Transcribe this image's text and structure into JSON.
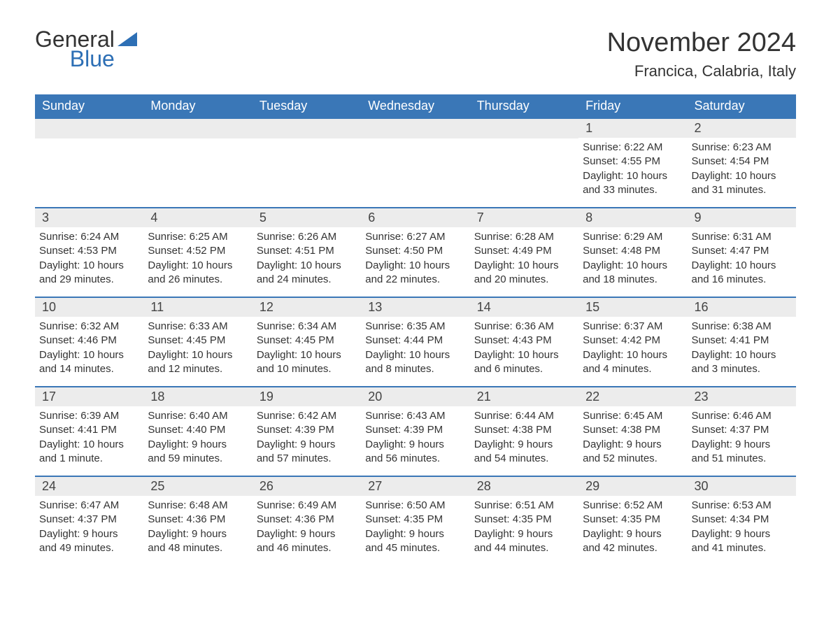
{
  "logo": {
    "text1": "General",
    "text2": "Blue"
  },
  "title": "November 2024",
  "location": "Francica, Calabria, Italy",
  "colors": {
    "header_bg": "#3a77b7",
    "header_text": "#ffffff",
    "date_bg": "#ececec",
    "row_border": "#3a77b7",
    "text": "#333333",
    "logo_blue": "#2d6fb5"
  },
  "day_names": [
    "Sunday",
    "Monday",
    "Tuesday",
    "Wednesday",
    "Thursday",
    "Friday",
    "Saturday"
  ],
  "weeks": [
    [
      null,
      null,
      null,
      null,
      null,
      {
        "d": "1",
        "sr": "Sunrise: 6:22 AM",
        "ss": "Sunset: 4:55 PM",
        "dl1": "Daylight: 10 hours",
        "dl2": "and 33 minutes."
      },
      {
        "d": "2",
        "sr": "Sunrise: 6:23 AM",
        "ss": "Sunset: 4:54 PM",
        "dl1": "Daylight: 10 hours",
        "dl2": "and 31 minutes."
      }
    ],
    [
      {
        "d": "3",
        "sr": "Sunrise: 6:24 AM",
        "ss": "Sunset: 4:53 PM",
        "dl1": "Daylight: 10 hours",
        "dl2": "and 29 minutes."
      },
      {
        "d": "4",
        "sr": "Sunrise: 6:25 AM",
        "ss": "Sunset: 4:52 PM",
        "dl1": "Daylight: 10 hours",
        "dl2": "and 26 minutes."
      },
      {
        "d": "5",
        "sr": "Sunrise: 6:26 AM",
        "ss": "Sunset: 4:51 PM",
        "dl1": "Daylight: 10 hours",
        "dl2": "and 24 minutes."
      },
      {
        "d": "6",
        "sr": "Sunrise: 6:27 AM",
        "ss": "Sunset: 4:50 PM",
        "dl1": "Daylight: 10 hours",
        "dl2": "and 22 minutes."
      },
      {
        "d": "7",
        "sr": "Sunrise: 6:28 AM",
        "ss": "Sunset: 4:49 PM",
        "dl1": "Daylight: 10 hours",
        "dl2": "and 20 minutes."
      },
      {
        "d": "8",
        "sr": "Sunrise: 6:29 AM",
        "ss": "Sunset: 4:48 PM",
        "dl1": "Daylight: 10 hours",
        "dl2": "and 18 minutes."
      },
      {
        "d": "9",
        "sr": "Sunrise: 6:31 AM",
        "ss": "Sunset: 4:47 PM",
        "dl1": "Daylight: 10 hours",
        "dl2": "and 16 minutes."
      }
    ],
    [
      {
        "d": "10",
        "sr": "Sunrise: 6:32 AM",
        "ss": "Sunset: 4:46 PM",
        "dl1": "Daylight: 10 hours",
        "dl2": "and 14 minutes."
      },
      {
        "d": "11",
        "sr": "Sunrise: 6:33 AM",
        "ss": "Sunset: 4:45 PM",
        "dl1": "Daylight: 10 hours",
        "dl2": "and 12 minutes."
      },
      {
        "d": "12",
        "sr": "Sunrise: 6:34 AM",
        "ss": "Sunset: 4:45 PM",
        "dl1": "Daylight: 10 hours",
        "dl2": "and 10 minutes."
      },
      {
        "d": "13",
        "sr": "Sunrise: 6:35 AM",
        "ss": "Sunset: 4:44 PM",
        "dl1": "Daylight: 10 hours",
        "dl2": "and 8 minutes."
      },
      {
        "d": "14",
        "sr": "Sunrise: 6:36 AM",
        "ss": "Sunset: 4:43 PM",
        "dl1": "Daylight: 10 hours",
        "dl2": "and 6 minutes."
      },
      {
        "d": "15",
        "sr": "Sunrise: 6:37 AM",
        "ss": "Sunset: 4:42 PM",
        "dl1": "Daylight: 10 hours",
        "dl2": "and 4 minutes."
      },
      {
        "d": "16",
        "sr": "Sunrise: 6:38 AM",
        "ss": "Sunset: 4:41 PM",
        "dl1": "Daylight: 10 hours",
        "dl2": "and 3 minutes."
      }
    ],
    [
      {
        "d": "17",
        "sr": "Sunrise: 6:39 AM",
        "ss": "Sunset: 4:41 PM",
        "dl1": "Daylight: 10 hours",
        "dl2": "and 1 minute."
      },
      {
        "d": "18",
        "sr": "Sunrise: 6:40 AM",
        "ss": "Sunset: 4:40 PM",
        "dl1": "Daylight: 9 hours",
        "dl2": "and 59 minutes."
      },
      {
        "d": "19",
        "sr": "Sunrise: 6:42 AM",
        "ss": "Sunset: 4:39 PM",
        "dl1": "Daylight: 9 hours",
        "dl2": "and 57 minutes."
      },
      {
        "d": "20",
        "sr": "Sunrise: 6:43 AM",
        "ss": "Sunset: 4:39 PM",
        "dl1": "Daylight: 9 hours",
        "dl2": "and 56 minutes."
      },
      {
        "d": "21",
        "sr": "Sunrise: 6:44 AM",
        "ss": "Sunset: 4:38 PM",
        "dl1": "Daylight: 9 hours",
        "dl2": "and 54 minutes."
      },
      {
        "d": "22",
        "sr": "Sunrise: 6:45 AM",
        "ss": "Sunset: 4:38 PM",
        "dl1": "Daylight: 9 hours",
        "dl2": "and 52 minutes."
      },
      {
        "d": "23",
        "sr": "Sunrise: 6:46 AM",
        "ss": "Sunset: 4:37 PM",
        "dl1": "Daylight: 9 hours",
        "dl2": "and 51 minutes."
      }
    ],
    [
      {
        "d": "24",
        "sr": "Sunrise: 6:47 AM",
        "ss": "Sunset: 4:37 PM",
        "dl1": "Daylight: 9 hours",
        "dl2": "and 49 minutes."
      },
      {
        "d": "25",
        "sr": "Sunrise: 6:48 AM",
        "ss": "Sunset: 4:36 PM",
        "dl1": "Daylight: 9 hours",
        "dl2": "and 48 minutes."
      },
      {
        "d": "26",
        "sr": "Sunrise: 6:49 AM",
        "ss": "Sunset: 4:36 PM",
        "dl1": "Daylight: 9 hours",
        "dl2": "and 46 minutes."
      },
      {
        "d": "27",
        "sr": "Sunrise: 6:50 AM",
        "ss": "Sunset: 4:35 PM",
        "dl1": "Daylight: 9 hours",
        "dl2": "and 45 minutes."
      },
      {
        "d": "28",
        "sr": "Sunrise: 6:51 AM",
        "ss": "Sunset: 4:35 PM",
        "dl1": "Daylight: 9 hours",
        "dl2": "and 44 minutes."
      },
      {
        "d": "29",
        "sr": "Sunrise: 6:52 AM",
        "ss": "Sunset: 4:35 PM",
        "dl1": "Daylight: 9 hours",
        "dl2": "and 42 minutes."
      },
      {
        "d": "30",
        "sr": "Sunrise: 6:53 AM",
        "ss": "Sunset: 4:34 PM",
        "dl1": "Daylight: 9 hours",
        "dl2": "and 41 minutes."
      }
    ]
  ]
}
